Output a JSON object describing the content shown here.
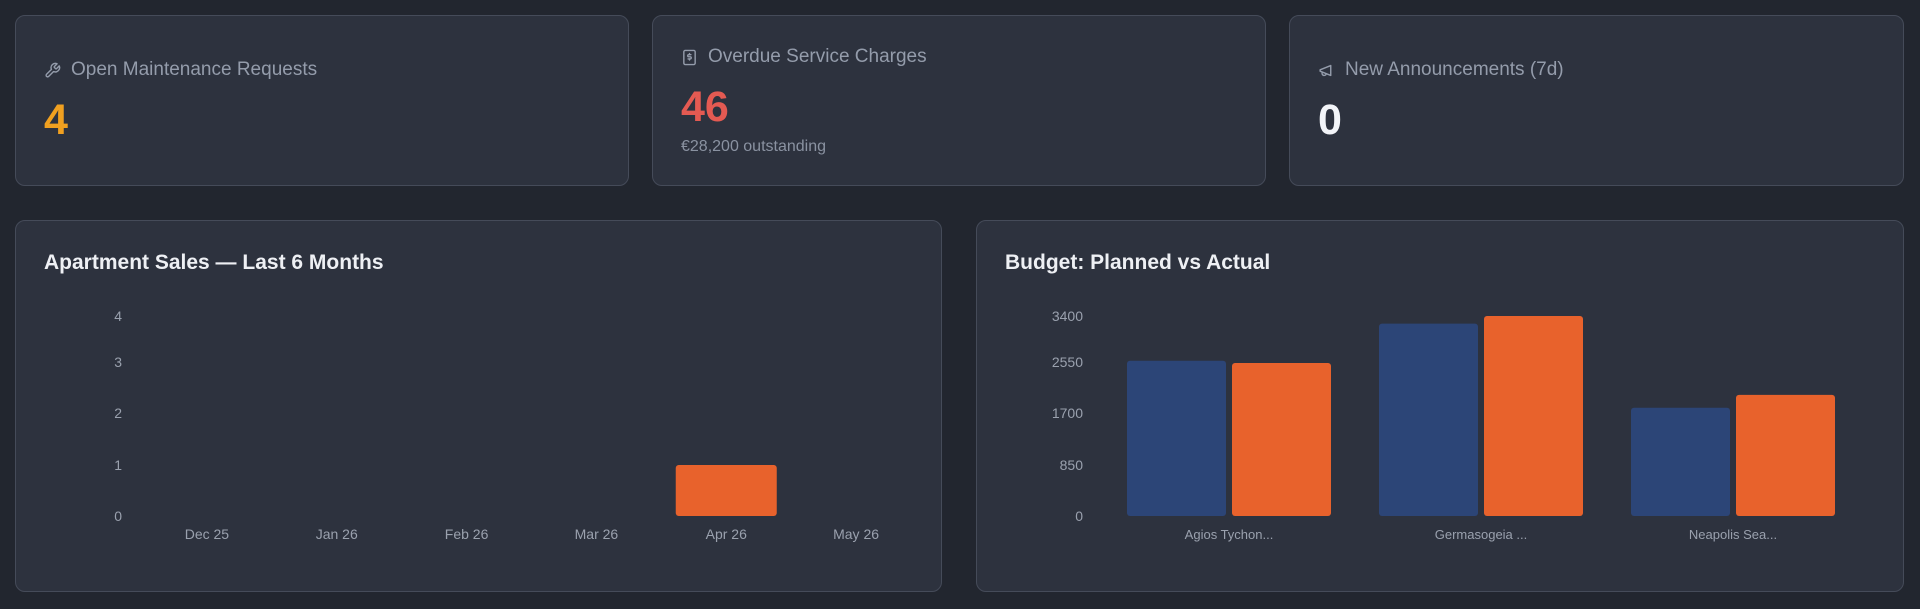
{
  "stats": [
    {
      "title": "Open Maintenance Requests",
      "value": "4",
      "icon": "wrench-icon",
      "color": "#f0a020"
    },
    {
      "title": "Overdue Service Charges",
      "value": "46",
      "sub": "€28,200 outstanding",
      "icon": "receipt-icon",
      "color": "#e45a52"
    },
    {
      "title": "New Announcements (7d)",
      "value": "0",
      "icon": "megaphone-icon",
      "color": "#f2f4f8"
    }
  ],
  "charts": {
    "sales_title": "Apartment Sales — Last 6 Months",
    "budget_title": "Budget: Planned vs Actual"
  },
  "chart_data": [
    {
      "type": "bar",
      "title": "Apartment Sales — Last 6 Months",
      "categories": [
        "Dec 25",
        "Jan 26",
        "Feb 26",
        "Mar 26",
        "Apr 26",
        "May 26"
      ],
      "values": [
        0,
        0,
        0,
        0,
        1,
        0
      ],
      "yticks": [
        "0",
        "1",
        "2",
        "3",
        "4"
      ],
      "ylim": [
        0,
        4
      ],
      "color": "#e8622c"
    },
    {
      "type": "bar",
      "title": "Budget: Planned vs Actual",
      "categories": [
        "Agios Tychon...",
        "Germasogeia ...",
        "Neapolis Sea..."
      ],
      "series": [
        {
          "values": [
            2640,
            3270,
            1840
          ],
          "color": "#2c4577"
        },
        {
          "values": [
            2600,
            3400,
            2060
          ],
          "color": "#e8622c"
        }
      ],
      "yticks": [
        "0",
        "850",
        "1700",
        "2550",
        "3400"
      ],
      "ylim": [
        0,
        3400
      ]
    }
  ]
}
